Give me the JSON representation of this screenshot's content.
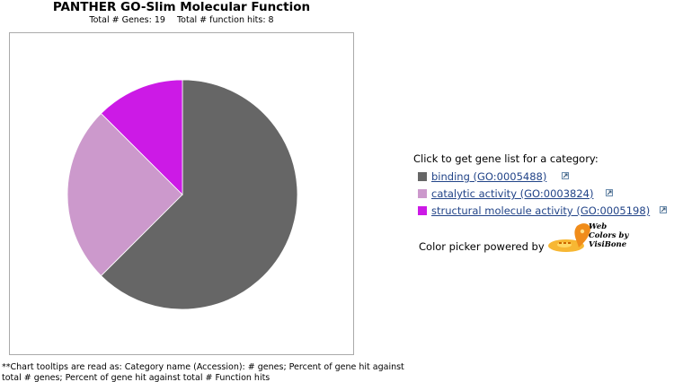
{
  "chart_data": {
    "type": "pie",
    "title": "PANTHER GO-Slim Molecular Function",
    "subtitle": {
      "total_genes": "Total # Genes: 19",
      "total_hits": "Total # function hits: 8"
    },
    "slices": [
      {
        "label": "binding (GO:0005488)",
        "value": 5,
        "color": "#666666"
      },
      {
        "label": "catalytic activity (GO:0003824)",
        "value": 2,
        "color": "#cc99cc"
      },
      {
        "label": "structural molecule activity (GO:0005198)",
        "value": 1,
        "color": "#cc1ae6"
      }
    ],
    "start": "top",
    "direction": "clockwise",
    "legend_placement": "right"
  },
  "legend": {
    "heading": "Click to get gene list for a category:",
    "items": [
      {
        "label": "binding (GO:0005488)",
        "color": "#666666"
      },
      {
        "label": "catalytic activity (GO:0003824)",
        "color": "#cc99cc"
      },
      {
        "label": "structural molecule activity (GO:0005198)",
        "color": "#cc1ae6"
      }
    ]
  },
  "color_picker": {
    "label": "Color picker powered by",
    "logo_line1": "Web",
    "logo_line2": "Colors by",
    "logo_line3": "VisiBone"
  },
  "footnote": "**Chart tooltips are read as: Category name (Accession): # genes; Percent of gene hit against total # genes; Percent of gene hit against total # Function hits"
}
